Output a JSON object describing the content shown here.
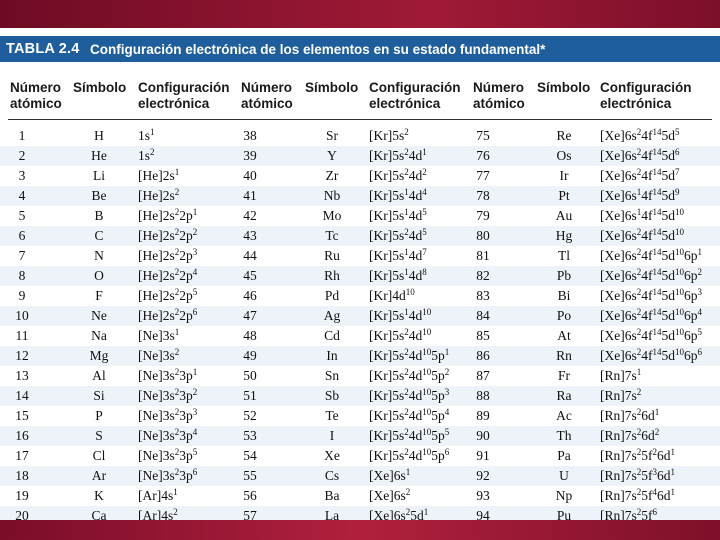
{
  "banner": {
    "label": "TABLA 2.4",
    "title": "Configuración electrónica de los elementos en su estado fundamental*"
  },
  "headers": {
    "number": "Número\natómico",
    "symbol": "Símbolo",
    "config": "Configuración\nelectrónica"
  },
  "colors": {
    "banner": "#1f5e9c",
    "frame": "#8a1530"
  },
  "columns": [
    {
      "rows": [
        {
          "n": "1",
          "s": "H",
          "c": "1s^1"
        },
        {
          "n": "2",
          "s": "He",
          "c": "1s^2"
        },
        {
          "n": "3",
          "s": "Li",
          "c": "[He]2s^1"
        },
        {
          "n": "4",
          "s": "Be",
          "c": "[He]2s^2"
        },
        {
          "n": "5",
          "s": "B",
          "c": "[He]2s^2 2p^1"
        },
        {
          "n": "6",
          "s": "C",
          "c": "[He]2s^2 2p^2"
        },
        {
          "n": "7",
          "s": "N",
          "c": "[He]2s^2 2p^3"
        },
        {
          "n": "8",
          "s": "O",
          "c": "[He]2s^2 2p^4"
        },
        {
          "n": "9",
          "s": "F",
          "c": "[He]2s^2 2p^5"
        },
        {
          "n": "10",
          "s": "Ne",
          "c": "[He]2s^2 2p^6"
        },
        {
          "n": "11",
          "s": "Na",
          "c": "[Ne]3s^1"
        },
        {
          "n": "12",
          "s": "Mg",
          "c": "[Ne]3s^2"
        },
        {
          "n": "13",
          "s": "Al",
          "c": "[Ne]3s^2 3p^1"
        },
        {
          "n": "14",
          "s": "Si",
          "c": "[Ne]3s^2 3p^2"
        },
        {
          "n": "15",
          "s": "P",
          "c": "[Ne]3s^2 3p^3"
        },
        {
          "n": "16",
          "s": "S",
          "c": "[Ne]3s^2 3p^4"
        },
        {
          "n": "17",
          "s": "Cl",
          "c": "[Ne]3s^2 3p^5"
        },
        {
          "n": "18",
          "s": "Ar",
          "c": "[Ne]3s^2 3p^6"
        },
        {
          "n": "19",
          "s": "K",
          "c": "[Ar]4s^1"
        },
        {
          "n": "20",
          "s": "Ca",
          "c": "[Ar]4s^2"
        }
      ]
    },
    {
      "rows": [
        {
          "n": "38",
          "s": "Sr",
          "c": "[Kr]5s^2"
        },
        {
          "n": "39",
          "s": "Y",
          "c": "[Kr]5s^2 4d^1"
        },
        {
          "n": "40",
          "s": "Zr",
          "c": "[Kr]5s^2 4d^2"
        },
        {
          "n": "41",
          "s": "Nb",
          "c": "[Kr]5s^1 4d^4"
        },
        {
          "n": "42",
          "s": "Mo",
          "c": "[Kr]5s^1 4d^5"
        },
        {
          "n": "43",
          "s": "Tc",
          "c": "[Kr]5s^2 4d^5"
        },
        {
          "n": "44",
          "s": "Ru",
          "c": "[Kr]5s^1 4d^7"
        },
        {
          "n": "45",
          "s": "Rh",
          "c": "[Kr]5s^1 4d^8"
        },
        {
          "n": "46",
          "s": "Pd",
          "c": "[Kr]4d^10"
        },
        {
          "n": "47",
          "s": "Ag",
          "c": "[Kr]5s^1 4d^10"
        },
        {
          "n": "48",
          "s": "Cd",
          "c": "[Kr]5s^2 4d^10"
        },
        {
          "n": "49",
          "s": "In",
          "c": "[Kr]5s^2 4d^10 5p^1"
        },
        {
          "n": "50",
          "s": "Sn",
          "c": "[Kr]5s^2 4d^10 5p^2"
        },
        {
          "n": "51",
          "s": "Sb",
          "c": "[Kr]5s^2 4d^10 5p^3"
        },
        {
          "n": "52",
          "s": "Te",
          "c": "[Kr]5s^2 4d^10 5p^4"
        },
        {
          "n": "53",
          "s": "I",
          "c": "[Kr]5s^2 4d^10 5p^5"
        },
        {
          "n": "54",
          "s": "Xe",
          "c": "[Kr]5s^2 4d^10 5p^6"
        },
        {
          "n": "55",
          "s": "Cs",
          "c": "[Xe]6s^1"
        },
        {
          "n": "56",
          "s": "Ba",
          "c": "[Xe]6s^2"
        },
        {
          "n": "57",
          "s": "La",
          "c": "[Xe]6s^2 5d^1"
        }
      ]
    },
    {
      "rows": [
        {
          "n": "75",
          "s": "Re",
          "c": "[Xe]6s^2 4f^14 5d^5"
        },
        {
          "n": "76",
          "s": "Os",
          "c": "[Xe]6s^2 4f^14 5d^6"
        },
        {
          "n": "77",
          "s": "Ir",
          "c": "[Xe]6s^2 4f^14 5d^7"
        },
        {
          "n": "78",
          "s": "Pt",
          "c": "[Xe]6s^1 4f^14 5d^9"
        },
        {
          "n": "79",
          "s": "Au",
          "c": "[Xe]6s^1 4f^14 5d^10"
        },
        {
          "n": "80",
          "s": "Hg",
          "c": "[Xe]6s^2 4f^14 5d^10"
        },
        {
          "n": "81",
          "s": "Tl",
          "c": "[Xe]6s^2 4f^14 5d^10 6p^1"
        },
        {
          "n": "82",
          "s": "Pb",
          "c": "[Xe]6s^2 4f^14 5d^10 6p^2"
        },
        {
          "n": "83",
          "s": "Bi",
          "c": "[Xe]6s^2 4f^14 5d^10 6p^3"
        },
        {
          "n": "84",
          "s": "Po",
          "c": "[Xe]6s^2 4f^14 5d^10 6p^4"
        },
        {
          "n": "85",
          "s": "At",
          "c": "[Xe]6s^2 4f^14 5d^10 6p^5"
        },
        {
          "n": "86",
          "s": "Rn",
          "c": "[Xe]6s^2 4f^14 5d^10 6p^6"
        },
        {
          "n": "87",
          "s": "Fr",
          "c": "[Rn]7s^1"
        },
        {
          "n": "88",
          "s": "Ra",
          "c": "[Rn]7s^2"
        },
        {
          "n": "89",
          "s": "Ac",
          "c": "[Rn]7s^2 6d^1"
        },
        {
          "n": "90",
          "s": "Th",
          "c": "[Rn]7s^2 6d^2"
        },
        {
          "n": "91",
          "s": "Pa",
          "c": "[Rn]7s^2 5f^2 6d^1"
        },
        {
          "n": "92",
          "s": "U",
          "c": "[Rn]7s^2 5f^3 6d^1"
        },
        {
          "n": "93",
          "s": "Np",
          "c": "[Rn]7s^2 5f^4 6d^1"
        },
        {
          "n": "94",
          "s": "Pu",
          "c": "[Rn]7s^2 5f^6"
        }
      ]
    }
  ]
}
